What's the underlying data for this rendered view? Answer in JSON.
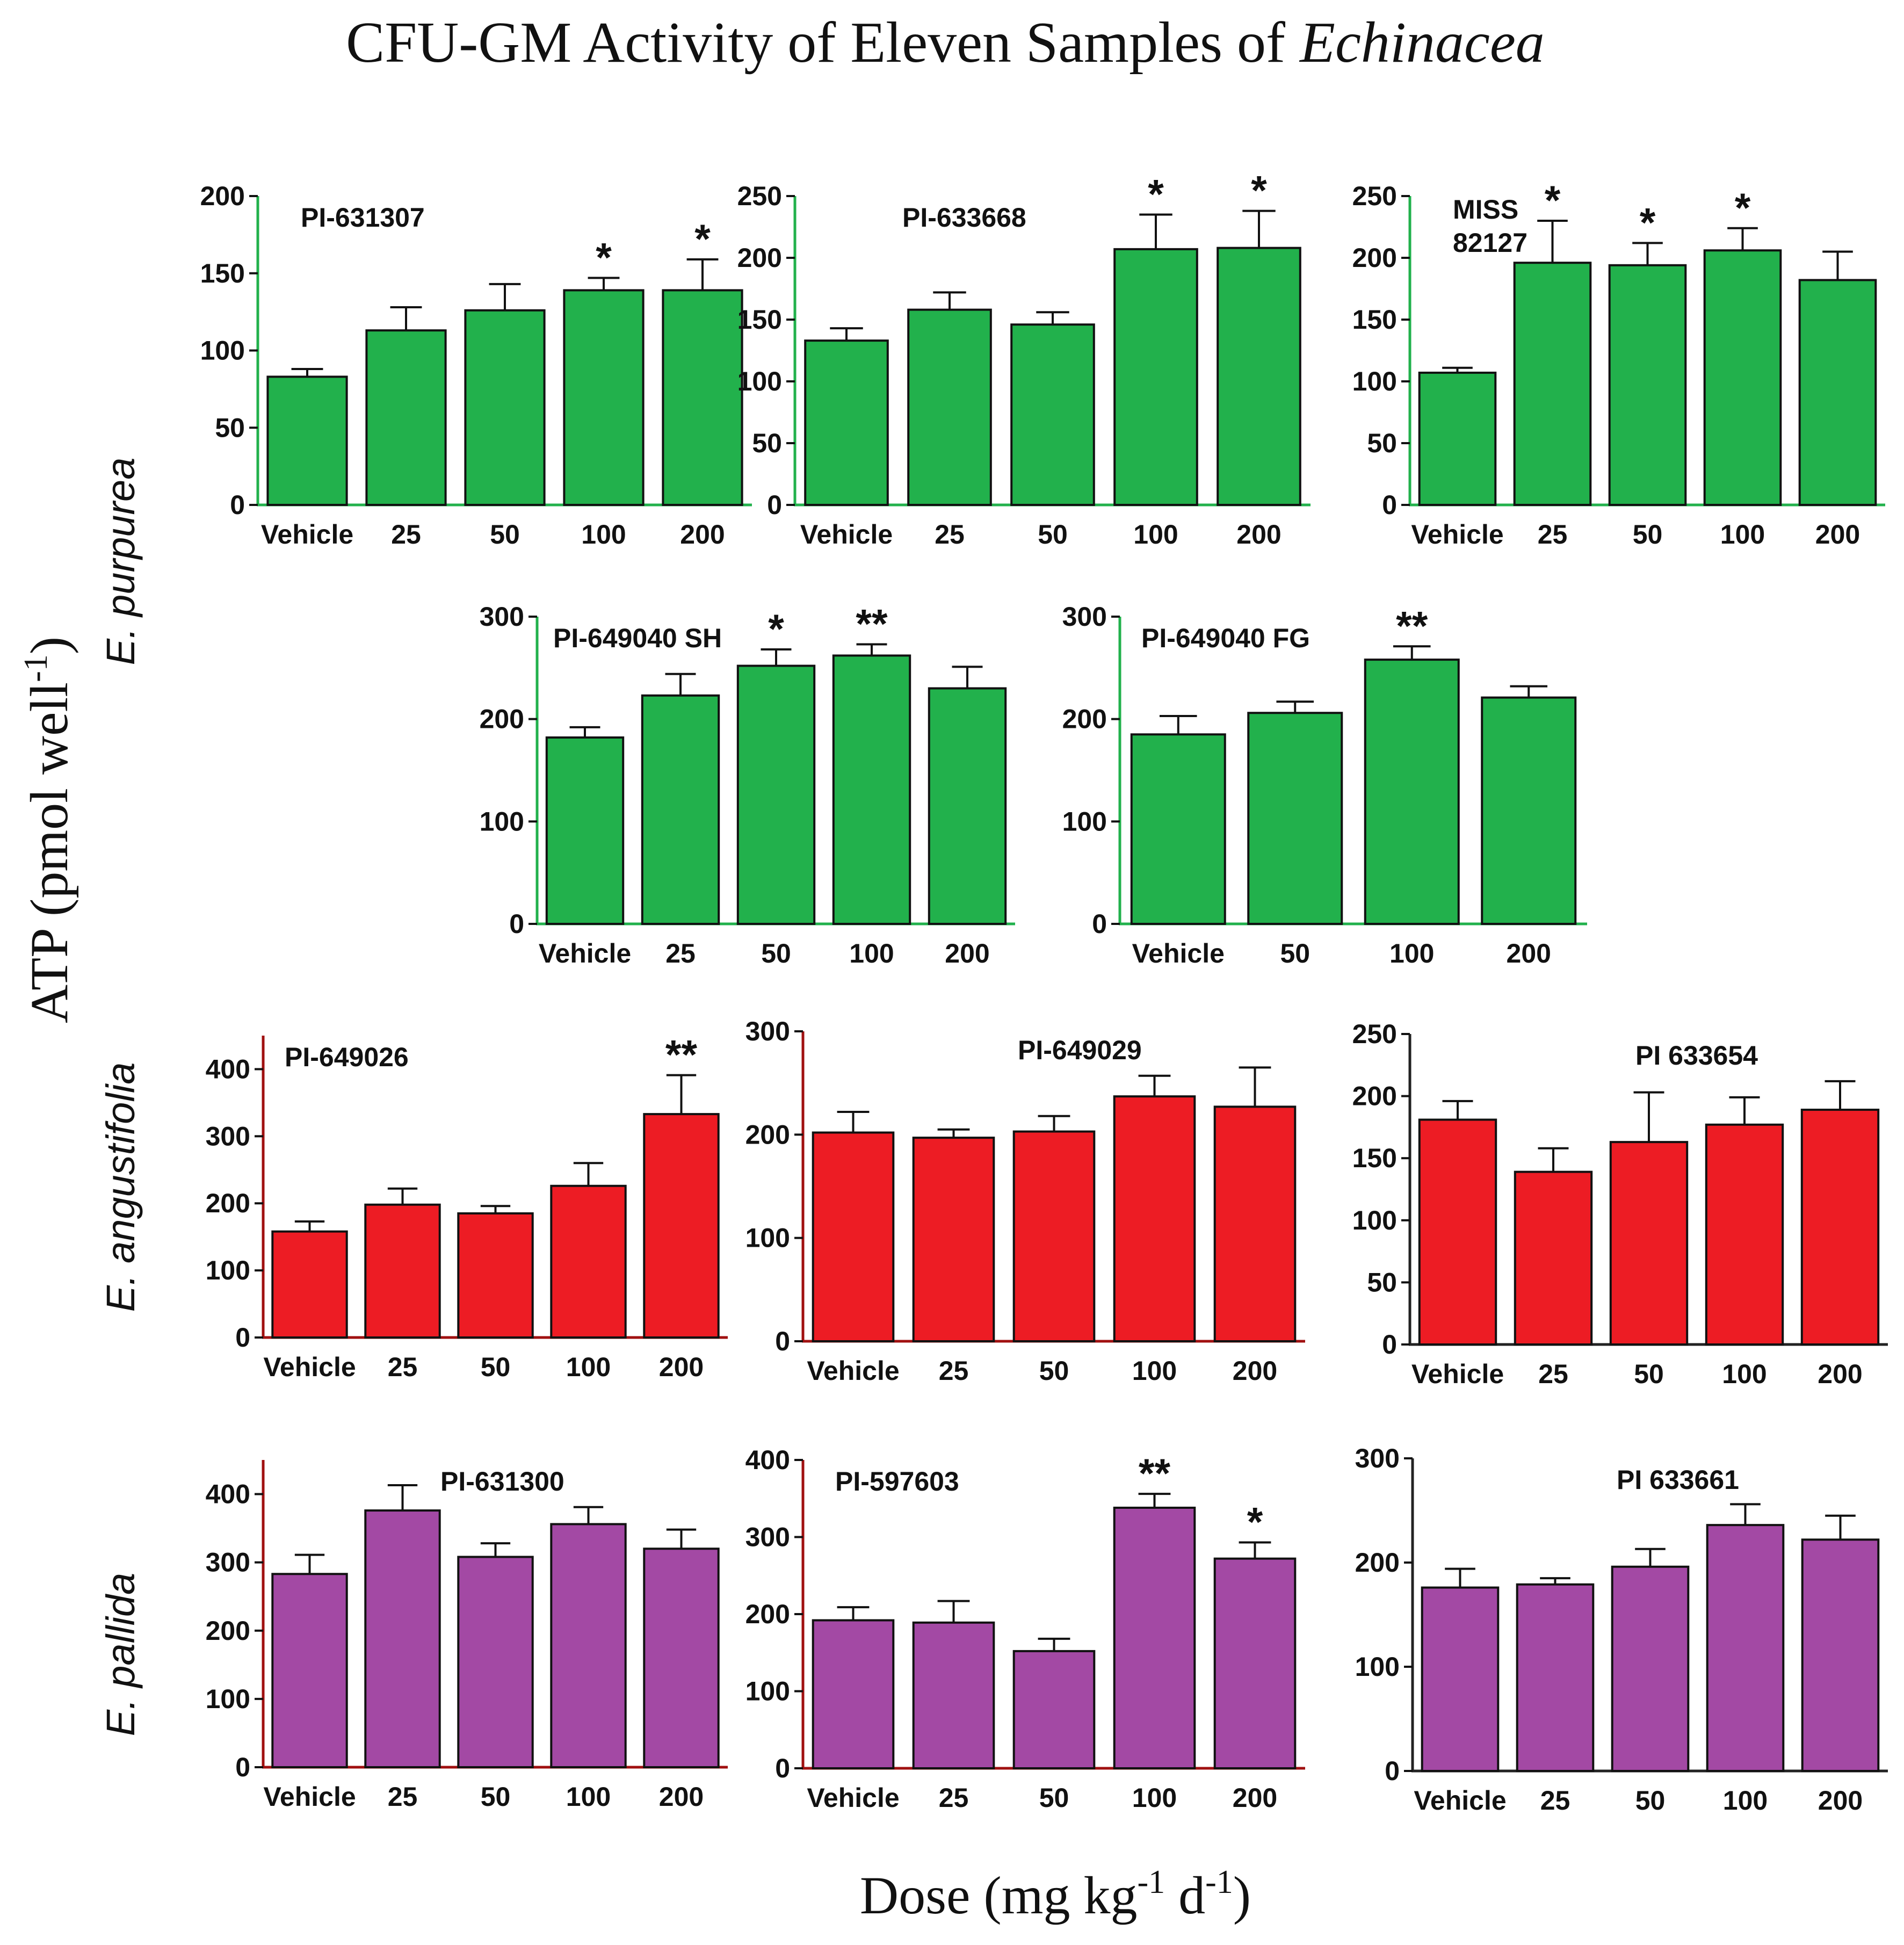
{
  "figure": {
    "title_main": "CFU-GM Activity of Eleven Samples of ",
    "title_italic": "Echinacea",
    "y_label": "ATP (pmol well",
    "y_label_sup": "-1",
    "y_label_close": ")",
    "x_label_a": "Dose (mg kg",
    "x_label_sup1": "-1",
    "x_label_b": " d",
    "x_label_sup2": "-1",
    "x_label_close": ")",
    "groups": [
      {
        "label": "E. purpurea",
        "color": "#22b14c"
      },
      {
        "label": "E. angustifolia",
        "color": "#ed1c24"
      },
      {
        "label": "E. pallida",
        "color": "#a349a4"
      }
    ]
  },
  "chart_data": [
    {
      "type": "bar",
      "title": "PI-631307",
      "group": "E. purpurea",
      "categories": [
        "Vehicle",
        "25",
        "50",
        "100",
        "200"
      ],
      "values": [
        83,
        113,
        126,
        139,
        139
      ],
      "errors": [
        5,
        15,
        17,
        8,
        20
      ],
      "significance": [
        "",
        "",
        "",
        "*",
        "*"
      ],
      "yticks": [
        0,
        50,
        100,
        150,
        200
      ],
      "ylim": [
        0,
        200
      ],
      "color": "#22b14c",
      "axis_color": "#22b14c"
    },
    {
      "type": "bar",
      "title": "PI-633668",
      "group": "E. purpurea",
      "categories": [
        "Vehicle",
        "25",
        "50",
        "100",
        "200"
      ],
      "values": [
        133,
        158,
        146,
        207,
        208
      ],
      "errors": [
        10,
        14,
        10,
        28,
        30
      ],
      "significance": [
        "",
        "",
        "",
        "*",
        "*"
      ],
      "yticks": [
        0,
        50,
        100,
        150,
        200,
        250
      ],
      "ylim": [
        0,
        250
      ],
      "color": "#22b14c",
      "axis_color": "#22b14c"
    },
    {
      "type": "bar",
      "title": "MISS 82127",
      "group": "E. purpurea",
      "categories": [
        "Vehicle",
        "25",
        "50",
        "100",
        "200"
      ],
      "values": [
        107,
        196,
        194,
        206,
        182
      ],
      "errors": [
        4,
        34,
        18,
        18,
        23
      ],
      "significance": [
        "",
        "*",
        "*",
        "*",
        ""
      ],
      "yticks": [
        0,
        50,
        100,
        150,
        200,
        250
      ],
      "ylim": [
        0,
        250
      ],
      "color": "#22b14c",
      "axis_color": "#22b14c"
    },
    {
      "type": "bar",
      "title": "PI-649040 SH",
      "group": "E. purpurea",
      "categories": [
        "Vehicle",
        "25",
        "50",
        "100",
        "200"
      ],
      "values": [
        182,
        223,
        252,
        262,
        230
      ],
      "errors": [
        10,
        21,
        16,
        11,
        21
      ],
      "significance": [
        "",
        "",
        "*",
        "**",
        ""
      ],
      "yticks": [
        0,
        100,
        200,
        300
      ],
      "ylim": [
        0,
        300
      ],
      "color": "#22b14c",
      "axis_color": "#22b14c"
    },
    {
      "type": "bar",
      "title": "PI-649040 FG",
      "group": "E. purpurea",
      "categories": [
        "Vehicle",
        "50",
        "100",
        "200"
      ],
      "values": [
        185,
        206,
        258,
        221
      ],
      "errors": [
        18,
        11,
        13,
        11
      ],
      "significance": [
        "",
        "",
        "**",
        ""
      ],
      "yticks": [
        0,
        100,
        200,
        300
      ],
      "ylim": [
        0,
        300
      ],
      "color": "#22b14c",
      "axis_color": "#22b14c"
    },
    {
      "type": "bar",
      "title": "PI-649026",
      "group": "E. angustifolia",
      "categories": [
        "Vehicle",
        "25",
        "50",
        "100",
        "200"
      ],
      "values": [
        158,
        198,
        185,
        226,
        333
      ],
      "errors": [
        15,
        24,
        11,
        34,
        58
      ],
      "significance": [
        "",
        "",
        "",
        "",
        "**"
      ],
      "yticks": [
        0,
        100,
        200,
        300,
        400
      ],
      "ylim": [
        0,
        450
      ],
      "color": "#ed1c24",
      "axis_color": "#a01010"
    },
    {
      "type": "bar",
      "title": "PI-649029",
      "group": "E. angustifolia",
      "categories": [
        "Vehicle",
        "25",
        "50",
        "100",
        "200"
      ],
      "values": [
        202,
        197,
        203,
        237,
        227
      ],
      "errors": [
        20,
        8,
        15,
        20,
        38
      ],
      "significance": [
        "",
        "",
        "",
        "",
        ""
      ],
      "yticks": [
        0,
        100,
        200,
        300
      ],
      "ylim": [
        0,
        300
      ],
      "color": "#ed1c24",
      "axis_color": "#a01010"
    },
    {
      "type": "bar",
      "title": "PI 633654",
      "group": "E. angustifolia",
      "categories": [
        "Vehicle",
        "25",
        "50",
        "100",
        "200"
      ],
      "values": [
        181,
        139,
        163,
        177,
        189
      ],
      "errors": [
        15,
        19,
        40,
        22,
        23
      ],
      "significance": [
        "",
        "",
        "",
        "",
        ""
      ],
      "yticks": [
        0,
        50,
        100,
        150,
        200,
        250
      ],
      "ylim": [
        0,
        250
      ],
      "color": "#ed1c24",
      "axis_color": "#222222"
    },
    {
      "type": "bar",
      "title": "PI-631300",
      "group": "E. pallida",
      "categories": [
        "Vehicle",
        "25",
        "50",
        "100",
        "200"
      ],
      "values": [
        283,
        376,
        308,
        356,
        320
      ],
      "errors": [
        28,
        37,
        20,
        25,
        28
      ],
      "significance": [
        "",
        "",
        "",
        "",
        ""
      ],
      "yticks": [
        0,
        100,
        200,
        300,
        400
      ],
      "ylim": [
        0,
        450
      ],
      "color": "#a349a4",
      "axis_color": "#a01010"
    },
    {
      "type": "bar",
      "title": "PI-597603",
      "group": "E. pallida",
      "categories": [
        "Vehicle",
        "25",
        "50",
        "100",
        "200"
      ],
      "values": [
        192,
        189,
        152,
        338,
        272
      ],
      "errors": [
        17,
        28,
        16,
        18,
        21
      ],
      "significance": [
        "",
        "",
        "",
        "**",
        "*"
      ],
      "yticks": [
        0,
        100,
        200,
        300,
        400
      ],
      "ylim": [
        0,
        400
      ],
      "color": "#a349a4",
      "axis_color": "#a01010"
    },
    {
      "type": "bar",
      "title": "PI 633661",
      "group": "E. pallida",
      "categories": [
        "Vehicle",
        "25",
        "50",
        "100",
        "200"
      ],
      "values": [
        176,
        179,
        196,
        236,
        222
      ],
      "errors": [
        18,
        6,
        17,
        20,
        23
      ],
      "significance": [
        "",
        "",
        "",
        "",
        ""
      ],
      "yticks": [
        0,
        100,
        200,
        300
      ],
      "ylim": [
        0,
        300
      ],
      "color": "#a349a4",
      "axis_color": "#222222"
    }
  ]
}
